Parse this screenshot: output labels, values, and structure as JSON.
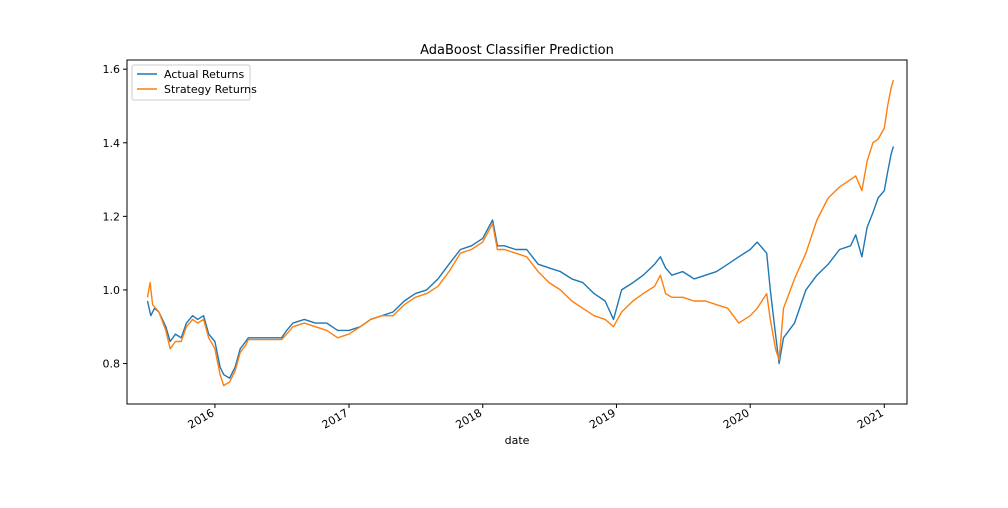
{
  "chart_data": {
    "type": "line",
    "title": "AdaBoost Classifier Prediction",
    "xlabel": "date",
    "ylabel": "",
    "x_range": [
      "2015-05-06",
      "2021-03-04"
    ],
    "ylim": [
      0.69,
      1.625
    ],
    "yticks": [
      "0.8",
      "1.0",
      "1.2",
      "1.4",
      "1.6"
    ],
    "xticks": [
      "2016",
      "2017",
      "2018",
      "2019",
      "2020",
      "2021"
    ],
    "grid": false,
    "legend_position": "top-left",
    "series": [
      {
        "name": "Actual Returns",
        "color": "#1f77b4",
        "points": [
          [
            "2015-07-01",
            0.97
          ],
          [
            "2015-07-10",
            0.93
          ],
          [
            "2015-07-20",
            0.95
          ],
          [
            "2015-08-01",
            0.94
          ],
          [
            "2015-08-20",
            0.9
          ],
          [
            "2015-09-01",
            0.86
          ],
          [
            "2015-09-15",
            0.88
          ],
          [
            "2015-10-01",
            0.87
          ],
          [
            "2015-10-15",
            0.91
          ],
          [
            "2015-11-01",
            0.93
          ],
          [
            "2015-11-15",
            0.92
          ],
          [
            "2015-12-01",
            0.93
          ],
          [
            "2015-12-15",
            0.88
          ],
          [
            "2016-01-01",
            0.86
          ],
          [
            "2016-01-15",
            0.79
          ],
          [
            "2016-01-25",
            0.77
          ],
          [
            "2016-02-10",
            0.76
          ],
          [
            "2016-02-25",
            0.79
          ],
          [
            "2016-03-10",
            0.84
          ],
          [
            "2016-03-25",
            0.86
          ],
          [
            "2016-04-01",
            0.87
          ],
          [
            "2016-07-01",
            0.87
          ],
          [
            "2016-07-15",
            0.89
          ],
          [
            "2016-08-01",
            0.91
          ],
          [
            "2016-09-01",
            0.92
          ],
          [
            "2016-10-01",
            0.91
          ],
          [
            "2016-11-01",
            0.91
          ],
          [
            "2016-12-01",
            0.89
          ],
          [
            "2017-01-01",
            0.89
          ],
          [
            "2017-02-01",
            0.9
          ],
          [
            "2017-03-01",
            0.92
          ],
          [
            "2017-04-01",
            0.93
          ],
          [
            "2017-05-01",
            0.94
          ],
          [
            "2017-06-01",
            0.97
          ],
          [
            "2017-07-01",
            0.99
          ],
          [
            "2017-08-01",
            1.0
          ],
          [
            "2017-09-01",
            1.03
          ],
          [
            "2017-10-01",
            1.07
          ],
          [
            "2017-11-01",
            1.11
          ],
          [
            "2017-12-01",
            1.12
          ],
          [
            "2018-01-01",
            1.14
          ],
          [
            "2018-01-28",
            1.19
          ],
          [
            "2018-02-10",
            1.12
          ],
          [
            "2018-03-01",
            1.12
          ],
          [
            "2018-04-01",
            1.11
          ],
          [
            "2018-05-01",
            1.11
          ],
          [
            "2018-06-01",
            1.07
          ],
          [
            "2018-07-01",
            1.06
          ],
          [
            "2018-08-01",
            1.05
          ],
          [
            "2018-09-01",
            1.03
          ],
          [
            "2018-10-01",
            1.02
          ],
          [
            "2018-11-01",
            0.99
          ],
          [
            "2018-12-01",
            0.97
          ],
          [
            "2018-12-24",
            0.92
          ],
          [
            "2019-01-15",
            1.0
          ],
          [
            "2019-02-15",
            1.02
          ],
          [
            "2019-03-15",
            1.04
          ],
          [
            "2019-04-15",
            1.07
          ],
          [
            "2019-05-01",
            1.09
          ],
          [
            "2019-05-15",
            1.06
          ],
          [
            "2019-06-01",
            1.04
          ],
          [
            "2019-07-01",
            1.05
          ],
          [
            "2019-08-01",
            1.03
          ],
          [
            "2019-09-01",
            1.04
          ],
          [
            "2019-10-01",
            1.05
          ],
          [
            "2019-11-01",
            1.07
          ],
          [
            "2019-12-01",
            1.09
          ],
          [
            "2020-01-01",
            1.11
          ],
          [
            "2020-01-20",
            1.13
          ],
          [
            "2020-02-15",
            1.1
          ],
          [
            "2020-02-25",
            1.0
          ],
          [
            "2020-03-10",
            0.88
          ],
          [
            "2020-03-20",
            0.8
          ],
          [
            "2020-04-01",
            0.87
          ],
          [
            "2020-05-01",
            0.91
          ],
          [
            "2020-06-01",
            1.0
          ],
          [
            "2020-07-01",
            1.04
          ],
          [
            "2020-08-01",
            1.07
          ],
          [
            "2020-09-01",
            1.11
          ],
          [
            "2020-10-01",
            1.12
          ],
          [
            "2020-10-15",
            1.15
          ],
          [
            "2020-11-01",
            1.09
          ],
          [
            "2020-11-15",
            1.17
          ],
          [
            "2020-12-01",
            1.21
          ],
          [
            "2020-12-15",
            1.25
          ],
          [
            "2021-01-01",
            1.27
          ],
          [
            "2021-01-10",
            1.32
          ],
          [
            "2021-01-20",
            1.37
          ],
          [
            "2021-01-26",
            1.39
          ]
        ]
      },
      {
        "name": "Strategy Returns",
        "color": "#ff7f0e",
        "points": [
          [
            "2015-07-01",
            0.98
          ],
          [
            "2015-07-08",
            1.02
          ],
          [
            "2015-07-15",
            0.96
          ],
          [
            "2015-08-01",
            0.94
          ],
          [
            "2015-08-20",
            0.89
          ],
          [
            "2015-09-01",
            0.84
          ],
          [
            "2015-09-15",
            0.86
          ],
          [
            "2015-10-01",
            0.86
          ],
          [
            "2015-10-15",
            0.9
          ],
          [
            "2015-11-01",
            0.92
          ],
          [
            "2015-11-15",
            0.91
          ],
          [
            "2015-12-01",
            0.92
          ],
          [
            "2015-12-15",
            0.87
          ],
          [
            "2016-01-01",
            0.84
          ],
          [
            "2016-01-15",
            0.77
          ],
          [
            "2016-01-25",
            0.74
          ],
          [
            "2016-02-10",
            0.75
          ],
          [
            "2016-02-25",
            0.78
          ],
          [
            "2016-03-10",
            0.83
          ],
          [
            "2016-03-25",
            0.85
          ],
          [
            "2016-04-01",
            0.865
          ],
          [
            "2016-07-01",
            0.865
          ],
          [
            "2016-07-15",
            0.88
          ],
          [
            "2016-08-01",
            0.9
          ],
          [
            "2016-09-01",
            0.91
          ],
          [
            "2016-10-01",
            0.9
          ],
          [
            "2016-11-01",
            0.89
          ],
          [
            "2016-12-01",
            0.87
          ],
          [
            "2017-01-01",
            0.88
          ],
          [
            "2017-02-01",
            0.9
          ],
          [
            "2017-03-01",
            0.92
          ],
          [
            "2017-04-01",
            0.93
          ],
          [
            "2017-05-01",
            0.93
          ],
          [
            "2017-06-01",
            0.96
          ],
          [
            "2017-07-01",
            0.98
          ],
          [
            "2017-08-01",
            0.99
          ],
          [
            "2017-09-01",
            1.01
          ],
          [
            "2017-10-01",
            1.05
          ],
          [
            "2017-11-01",
            1.1
          ],
          [
            "2017-12-01",
            1.11
          ],
          [
            "2018-01-01",
            1.13
          ],
          [
            "2018-01-28",
            1.18
          ],
          [
            "2018-02-10",
            1.11
          ],
          [
            "2018-03-01",
            1.11
          ],
          [
            "2018-04-01",
            1.1
          ],
          [
            "2018-05-01",
            1.09
          ],
          [
            "2018-06-01",
            1.05
          ],
          [
            "2018-07-01",
            1.02
          ],
          [
            "2018-08-01",
            1.0
          ],
          [
            "2018-09-01",
            0.97
          ],
          [
            "2018-10-01",
            0.95
          ],
          [
            "2018-11-01",
            0.93
          ],
          [
            "2018-12-01",
            0.92
          ],
          [
            "2018-12-24",
            0.9
          ],
          [
            "2019-01-15",
            0.94
          ],
          [
            "2019-02-15",
            0.97
          ],
          [
            "2019-03-15",
            0.99
          ],
          [
            "2019-04-15",
            1.01
          ],
          [
            "2019-05-01",
            1.04
          ],
          [
            "2019-05-15",
            0.99
          ],
          [
            "2019-06-01",
            0.98
          ],
          [
            "2019-07-01",
            0.98
          ],
          [
            "2019-08-01",
            0.97
          ],
          [
            "2019-09-01",
            0.97
          ],
          [
            "2019-10-01",
            0.96
          ],
          [
            "2019-11-01",
            0.95
          ],
          [
            "2019-12-01",
            0.91
          ],
          [
            "2020-01-01",
            0.93
          ],
          [
            "2020-01-20",
            0.95
          ],
          [
            "2020-02-15",
            0.99
          ],
          [
            "2020-02-25",
            0.92
          ],
          [
            "2020-03-10",
            0.84
          ],
          [
            "2020-03-20",
            0.81
          ],
          [
            "2020-04-01",
            0.95
          ],
          [
            "2020-05-01",
            1.03
          ],
          [
            "2020-06-01",
            1.1
          ],
          [
            "2020-07-01",
            1.19
          ],
          [
            "2020-08-01",
            1.25
          ],
          [
            "2020-09-01",
            1.28
          ],
          [
            "2020-10-01",
            1.3
          ],
          [
            "2020-10-15",
            1.31
          ],
          [
            "2020-11-01",
            1.27
          ],
          [
            "2020-11-15",
            1.35
          ],
          [
            "2020-12-01",
            1.4
          ],
          [
            "2020-12-15",
            1.41
          ],
          [
            "2021-01-01",
            1.44
          ],
          [
            "2021-01-10",
            1.5
          ],
          [
            "2021-01-20",
            1.55
          ],
          [
            "2021-01-26",
            1.57
          ]
        ]
      }
    ]
  }
}
